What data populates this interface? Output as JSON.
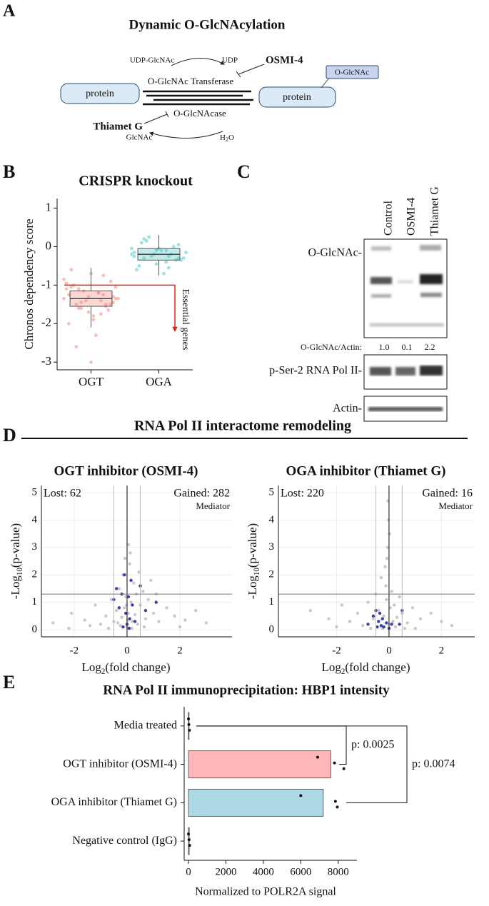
{
  "figure": {
    "letters": [
      "A",
      "B",
      "C",
      "D",
      "E"
    ],
    "d_title": "RNA Pol II interactome remodeling"
  },
  "diagram": {
    "title": "Dynamic O-GlcNAcylation",
    "protein_left": "protein",
    "protein_right": "protein",
    "modification": "O-GlcNAc",
    "udp_glcnac": "UDP-GlcNAc",
    "udp": "UDP",
    "ogt": "O-GlcNAc Transferase",
    "oga": "O-GlcNAcase",
    "inhibitor_ogt": "OSMI-4",
    "inhibitor_oga": "Thiamet G",
    "glcnac": "GlcNAc",
    "water": {
      "main": "H",
      "sub": "2",
      "rest": "O"
    }
  },
  "blot": {
    "lanes": [
      "Control",
      "OSMI-4",
      "Thiamet G"
    ],
    "rows": [
      "O-GlcNAc-",
      "p-Ser-2 RNA Pol II-",
      "Actin-"
    ],
    "ratio_label": "O-GlcNAc/Actin:",
    "ratios": [
      "1.0",
      "0.1",
      "2.2"
    ]
  },
  "chart_data": [
    {
      "type": "box-strip",
      "title": "CRISPR knockout",
      "ylabel": "Chronos dependency score",
      "categories": [
        "OGT",
        "OGA"
      ],
      "colors": [
        "#f28b82",
        "#4cc9c9"
      ],
      "boxes": [
        {
          "q1": -1.55,
          "median": -1.35,
          "q3": -1.15,
          "whisker_low": -2.1,
          "whisker_high": -0.55
        },
        {
          "q1": -0.35,
          "median": -0.2,
          "q3": -0.05,
          "whisker_low": -0.75,
          "whisker_high": 0.3
        }
      ],
      "points": [
        [
          -1.35,
          -1.2,
          -1.5,
          -0.9,
          -1.7,
          -1.1,
          -1.4,
          -1.6,
          -1.3,
          -0.7,
          -2.0,
          -1.25,
          -1.45,
          -1.05,
          -1.8,
          -0.6,
          -1.55,
          -1.15,
          -1.35,
          -2.3,
          -1.0,
          -1.65,
          -1.4,
          -0.85,
          -1.2,
          -2.6,
          -1.5,
          -1.3,
          -0.95,
          -1.75,
          -1.1,
          -1.45,
          -3.0,
          -1.25,
          -0.75,
          -1.6,
          -1.35,
          -1.9,
          -1.05,
          -1.5
        ],
        [
          -0.2,
          -0.1,
          -0.3,
          0.05,
          -0.45,
          -0.15,
          -0.25,
          0.15,
          -0.35,
          -0.05,
          -0.6,
          -0.2,
          0.25,
          -0.3,
          -0.1,
          -0.5,
          0.0,
          -0.25,
          -0.15,
          -0.7,
          0.1,
          -0.35,
          -0.2,
          -0.05,
          -0.4,
          0.2,
          -0.3,
          -0.1,
          -0.25,
          -0.55
        ]
      ],
      "ylim": [
        -3.2,
        1.25
      ],
      "yticks": [
        1,
        0,
        -1,
        -2,
        -3
      ],
      "threshold": -1,
      "threshold_label": "Essential genes",
      "threshold_color": "#d62a1e"
    },
    {
      "type": "volcano",
      "title": "OGT inhibitor (OSMI-4)",
      "xlabel": {
        "main": "Log",
        "sub": "2",
        "rest": "(fold change)"
      },
      "ylabel": {
        "main": "-Log",
        "sub": "10",
        "rest": "(p-value)"
      },
      "lost": "Lost: 62",
      "gained": "Gained: 282",
      "xlim": [
        -3.24,
        3.97
      ],
      "ylim": [
        -0.26,
        5.26
      ],
      "xticks": [
        -2,
        0,
        2
      ],
      "yticks": [
        0,
        1,
        2,
        3,
        4,
        5
      ],
      "threshold_y": 1.3,
      "fold_lines": [
        -0.5,
        0,
        0.5
      ],
      "grid": true,
      "points": {
        "color": "#c8c8c8",
        "x": [
          -2.8,
          -2.1,
          -1.6,
          -1.2,
          -1.0,
          -0.8,
          -0.6,
          -0.5,
          -0.4,
          -0.3,
          -0.25,
          -0.2,
          -0.15,
          -0.1,
          -0.05,
          0,
          0.05,
          0.1,
          0.15,
          0.2,
          0.25,
          0.3,
          0.35,
          0.4,
          0.5,
          0.6,
          0.7,
          0.8,
          1.0,
          1.2,
          1.5,
          1.8,
          2.2,
          2.6,
          3.0,
          0.05,
          0.12,
          -0.08,
          0.45,
          0.9,
          -0.7,
          0.65,
          1.1,
          -1.4,
          0.02,
          -0.02,
          0.18,
          -0.35,
          2.0,
          -2.2
        ],
        "y": [
          0.25,
          0.6,
          0.35,
          0.9,
          0.2,
          0.5,
          1.1,
          0.3,
          0.7,
          1.5,
          0.15,
          0.45,
          2.0,
          0.8,
          1.2,
          0.1,
          0.6,
          2.4,
          1.0,
          0.3,
          1.7,
          0.55,
          1.3,
          0.2,
          0.9,
          1.4,
          0.4,
          1.1,
          0.6,
          0.3,
          0.8,
          0.5,
          0.35,
          0.7,
          0.25,
          3.1,
          2.8,
          2.6,
          2.1,
          1.8,
          0.05,
          0.1,
          1.3,
          0.15,
          0.35,
          0.9,
          0.05,
          0.25,
          0.1,
          0.05
        ]
      },
      "mediator": {
        "name": "Mediator",
        "color": "#3b3fb0",
        "x": [
          -0.5,
          -0.4,
          -0.3,
          -0.2,
          -0.1,
          -0.05,
          0,
          0.05,
          0.1,
          0.15,
          0.2,
          0.3,
          0.5,
          0.7,
          1.1,
          -0.15,
          0.08
        ],
        "y": [
          1.1,
          1.5,
          0.8,
          1.3,
          2.0,
          0.6,
          0.2,
          1.2,
          0.4,
          1.8,
          0.9,
          0.3,
          1.6,
          0.7,
          1.0,
          0.1,
          0.05
        ]
      }
    },
    {
      "type": "volcano",
      "title": "OGA inhibitor (Thiamet G)",
      "xlabel": {
        "main": "Log",
        "sub": "2",
        "rest": "(fold change)"
      },
      "ylabel": {
        "main": "-Log",
        "sub": "10",
        "rest": "(p-value)"
      },
      "lost": "Lost: 220",
      "gained": "Gained: 16",
      "xlim": [
        -4.22,
        3.27
      ],
      "ylim": [
        -0.26,
        5.26
      ],
      "xticks": [
        -2,
        0,
        2
      ],
      "yticks": [
        0,
        1,
        2,
        3,
        4,
        5
      ],
      "threshold_y": 1.3,
      "fold_lines": [
        -0.5,
        0,
        0.5
      ],
      "grid": true,
      "points": {
        "color": "#c8c8c8",
        "x": [
          -3.0,
          -2.3,
          -1.8,
          -1.5,
          -1.2,
          -1.0,
          -0.8,
          -0.6,
          -0.5,
          -0.4,
          -0.3,
          -0.2,
          -0.15,
          -0.1,
          -0.05,
          0,
          -0.08,
          -0.12,
          0.05,
          0.1,
          0.15,
          0.2,
          0.3,
          0.4,
          0.5,
          0.7,
          0.9,
          1.2,
          1.6,
          2.0,
          2.4,
          -0.02,
          0.02,
          -0.04,
          -0.25,
          0.25,
          -0.7,
          0.6,
          1.0,
          -2.0
        ],
        "y": [
          0.7,
          0.4,
          0.9,
          0.3,
          0.6,
          0.15,
          1.0,
          0.4,
          1.3,
          0.7,
          1.9,
          0.5,
          2.3,
          1.1,
          3.0,
          0.2,
          2.6,
          1.6,
          0.8,
          1.4,
          0.3,
          0.9,
          0.45,
          1.2,
          0.6,
          0.25,
          0.8,
          0.4,
          0.6,
          0.3,
          0.15,
          4.0,
          3.5,
          4.7,
          0.05,
          0.1,
          0.05,
          0.05,
          0.05,
          0.1
        ]
      },
      "mediator": {
        "name": "Mediator",
        "color": "#3b3fb0",
        "x": [
          -0.8,
          -0.6,
          -0.5,
          -0.4,
          -0.35,
          -0.3,
          -0.25,
          -0.2,
          -0.1,
          0,
          0.1,
          0.4,
          0.5,
          -0.45
        ],
        "y": [
          0.2,
          0.5,
          0.7,
          0.3,
          0.6,
          0.15,
          0.4,
          0.1,
          0.25,
          0.05,
          0.2,
          0.2,
          0.7,
          0.1
        ]
      }
    },
    {
      "type": "hbar",
      "title": "RNA Pol II immunoprecipitation: HBP1 intensity",
      "xlabel": "Normalized to POLR2A signal",
      "categories": [
        "Media treated",
        "OGT inhibitor (OSMI-4)",
        "OGA inhibitor (Thiamet G)",
        "Negative control (IgG)"
      ],
      "values": [
        30,
        7600,
        7200,
        40
      ],
      "colors": [
        "#ffb6b6",
        "#ffb6b6",
        "#add8e6",
        "#add8e6"
      ],
      "replicates": [
        [
          0,
          20,
          50
        ],
        [
          6900,
          7800,
          8300
        ],
        [
          6000,
          7850,
          7950
        ],
        [
          0,
          30,
          60
        ]
      ],
      "xlim": [
        -230,
        9000
      ],
      "xticks": [
        0,
        2000,
        4000,
        6000,
        8000
      ],
      "comparisons": [
        "p: 0.0025",
        "p: 0.0074"
      ]
    }
  ]
}
